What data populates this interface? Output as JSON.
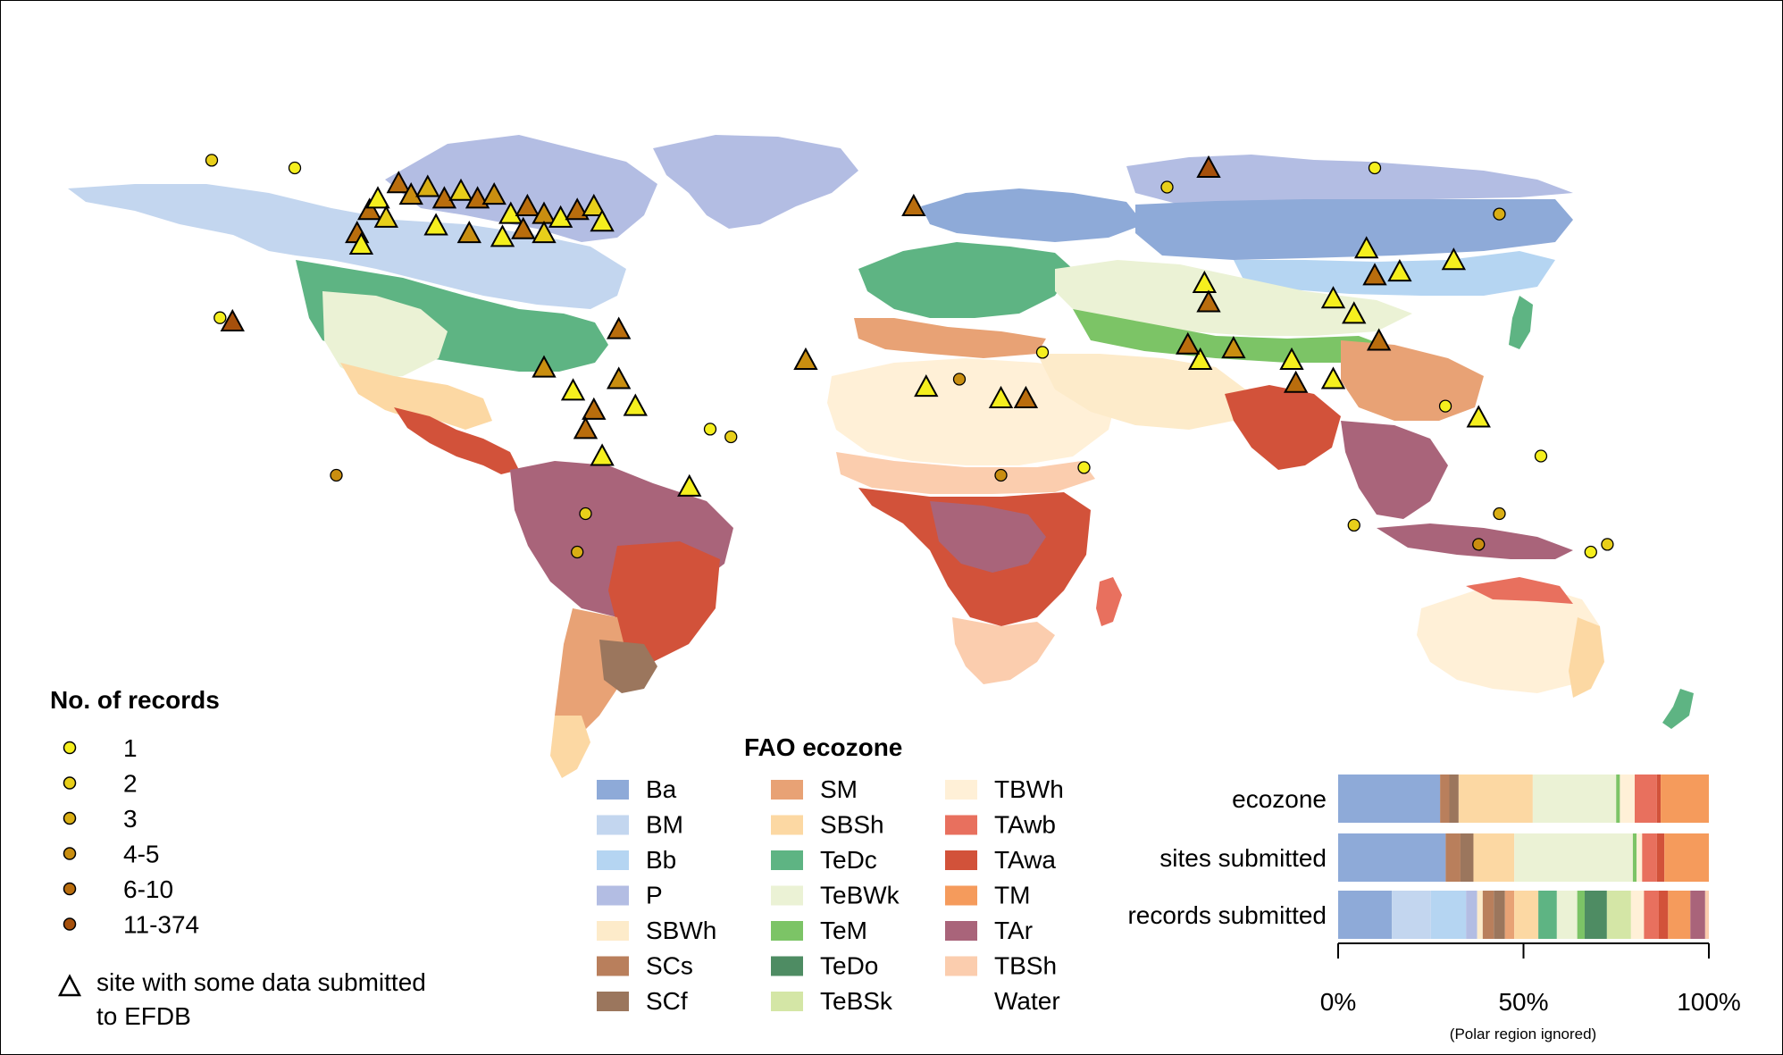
{
  "records_legend": {
    "title": "No. of records",
    "items": [
      {
        "label": "1",
        "color": "#f5ef1e"
      },
      {
        "label": "2",
        "color": "#e8cf1a"
      },
      {
        "label": "3",
        "color": "#d9ae14"
      },
      {
        "label": "4-5",
        "color": "#c98e10"
      },
      {
        "label": "6-10",
        "color": "#b96d0d"
      },
      {
        "label": "11-374",
        "color": "#a6500c"
      }
    ],
    "triangle_label_line1": "site with some data submitted",
    "triangle_label_line2": "to EFDB"
  },
  "ecozone_legend": {
    "title": "FAO ecozone",
    "items": [
      {
        "code": "Ba",
        "color": "#8eaad8"
      },
      {
        "code": "BM",
        "color": "#c3d6ef"
      },
      {
        "code": "Bb",
        "color": "#b5d5f2"
      },
      {
        "code": "P",
        "color": "#b3bde3"
      },
      {
        "code": "SBWh",
        "color": "#fdebca"
      },
      {
        "code": "SCs",
        "color": "#b97f5c"
      },
      {
        "code": "SCf",
        "color": "#9b765d"
      },
      {
        "code": "SM",
        "color": "#e8a275"
      },
      {
        "code": "SBSh",
        "color": "#fcd8a3"
      },
      {
        "code": "TeDc",
        "color": "#5eb483"
      },
      {
        "code": "TeBWk",
        "color": "#ebf2d5"
      },
      {
        "code": "TeM",
        "color": "#7cc466"
      },
      {
        "code": "TeDo",
        "color": "#4e8c63"
      },
      {
        "code": "TeBSk",
        "color": "#d4e6a6"
      },
      {
        "code": "TBWh",
        "color": "#fff0d7"
      },
      {
        "code": "TAwb",
        "color": "#e8705e"
      },
      {
        "code": "TAwa",
        "color": "#d2523a"
      },
      {
        "code": "TM",
        "color": "#f59b5c"
      },
      {
        "code": "TAr",
        "color": "#a9647a"
      },
      {
        "code": "TBSh",
        "color": "#fbcdae"
      },
      {
        "code": "Water",
        "color": "#ffffff"
      }
    ]
  },
  "bars": {
    "rows": [
      {
        "label": "ecozone"
      },
      {
        "label": "sites submitted"
      },
      {
        "label": "records submitted"
      }
    ],
    "axis_ticks": [
      "0%",
      "50%",
      "100%"
    ],
    "note": "(Polar region ignored)"
  },
  "chart_data": {
    "type": "bar",
    "orientation": "horizontal-stacked-percent",
    "categories": [
      "ecozone",
      "sites submitted",
      "records submitted"
    ],
    "xlim": [
      0,
      100
    ],
    "series": [
      {
        "name": "Ba",
        "color": "#8eaad8",
        "values": [
          27.5,
          29.0,
          14.5
        ]
      },
      {
        "name": "BM",
        "color": "#c3d6ef",
        "values": [
          0,
          0,
          10.5
        ]
      },
      {
        "name": "Bb",
        "color": "#b5d5f2",
        "values": [
          0,
          0,
          9.5
        ]
      },
      {
        "name": "P",
        "color": "#b3bde3",
        "values": [
          0,
          0,
          3.0
        ]
      },
      {
        "name": "SBWh",
        "color": "#fdebca",
        "values": [
          0,
          0,
          1.5
        ]
      },
      {
        "name": "SCs",
        "color": "#b97f5c",
        "values": [
          2.5,
          4.0,
          3.0
        ]
      },
      {
        "name": "SCf",
        "color": "#9b765d",
        "values": [
          2.5,
          3.5,
          3.0
        ]
      },
      {
        "name": "SM",
        "color": "#e8a275",
        "values": [
          0,
          0,
          2.5
        ]
      },
      {
        "name": "SBSh",
        "color": "#fcd8a3",
        "values": [
          20.0,
          11.0,
          6.5
        ]
      },
      {
        "name": "TeDc",
        "color": "#5eb483",
        "values": [
          0,
          0,
          5.0
        ]
      },
      {
        "name": "TeBWk",
        "color": "#ebf2d5",
        "values": [
          22.5,
          32.0,
          5.5
        ]
      },
      {
        "name": "TeM",
        "color": "#7cc466",
        "values": [
          1.0,
          1.0,
          2.0
        ]
      },
      {
        "name": "TeDo",
        "color": "#4e8c63",
        "values": [
          0,
          0,
          6.0
        ]
      },
      {
        "name": "TeBSk",
        "color": "#d4e6a6",
        "values": [
          0,
          0,
          6.5
        ]
      },
      {
        "name": "TBWh",
        "color": "#fff0d7",
        "values": [
          4.0,
          1.5,
          3.5
        ]
      },
      {
        "name": "TAwb",
        "color": "#e8705e",
        "values": [
          6.0,
          4.0,
          4.0
        ]
      },
      {
        "name": "TAwa",
        "color": "#d2523a",
        "values": [
          1.0,
          2.0,
          2.5
        ]
      },
      {
        "name": "TM",
        "color": "#f59b5c",
        "values": [
          13.0,
          12.0,
          6.0
        ]
      },
      {
        "name": "TAr",
        "color": "#a9647a",
        "values": [
          0,
          0,
          4.0
        ]
      },
      {
        "name": "TBSh",
        "color": "#fbcdae",
        "values": [
          0,
          0,
          1.0
        ]
      }
    ]
  },
  "map_data": {
    "description_source": "world map of FAO ecozones with EFDB record locations",
    "sites": [
      {
        "lon": -122,
        "lat": 49,
        "cls": 4,
        "tri": true
      },
      {
        "lon": -120,
        "lat": 52,
        "cls": 0,
        "tri": true
      },
      {
        "lon": -118,
        "lat": 47,
        "cls": 1,
        "tri": true
      },
      {
        "lon": -115,
        "lat": 56,
        "cls": 4,
        "tri": true
      },
      {
        "lon": -112,
        "lat": 53,
        "cls": 3,
        "tri": true
      },
      {
        "lon": -108,
        "lat": 55,
        "cls": 2,
        "tri": true
      },
      {
        "lon": -104,
        "lat": 52,
        "cls": 4,
        "tri": true
      },
      {
        "lon": -100,
        "lat": 54,
        "cls": 1,
        "tri": true
      },
      {
        "lon": -96,
        "lat": 52,
        "cls": 4,
        "tri": true
      },
      {
        "lon": -92,
        "lat": 53,
        "cls": 3,
        "tri": true
      },
      {
        "lon": -88,
        "lat": 48,
        "cls": 0,
        "tri": true
      },
      {
        "lon": -84,
        "lat": 50,
        "cls": 4,
        "tri": true
      },
      {
        "lon": -80,
        "lat": 48,
        "cls": 3,
        "tri": true
      },
      {
        "lon": -76,
        "lat": 47,
        "cls": 0,
        "tri": true
      },
      {
        "lon": -72,
        "lat": 49,
        "cls": 4,
        "tri": true
      },
      {
        "lon": -68,
        "lat": 50,
        "cls": 1,
        "tri": true
      },
      {
        "lon": -66,
        "lat": 46,
        "cls": 0,
        "tri": true
      },
      {
        "lon": -106,
        "lat": 45,
        "cls": 0,
        "tri": true
      },
      {
        "lon": -98,
        "lat": 43,
        "cls": 3,
        "tri": true
      },
      {
        "lon": -90,
        "lat": 42,
        "cls": 0,
        "tri": true
      },
      {
        "lon": -85,
        "lat": 44,
        "cls": 4,
        "tri": true
      },
      {
        "lon": -80,
        "lat": 43,
        "cls": 1,
        "tri": true
      },
      {
        "lon": -125,
        "lat": 43,
        "cls": 4,
        "tri": true
      },
      {
        "lon": -124,
        "lat": 40,
        "cls": 0,
        "tri": true
      },
      {
        "lon": -155,
        "lat": 20,
        "cls": 5,
        "tri": true
      },
      {
        "lon": -62,
        "lat": 18,
        "cls": 4,
        "tri": true
      },
      {
        "lon": -80,
        "lat": 8,
        "cls": 3,
        "tri": true
      },
      {
        "lon": -73,
        "lat": 2,
        "cls": 0,
        "tri": true
      },
      {
        "lon": -68,
        "lat": -3,
        "cls": 4,
        "tri": true
      },
      {
        "lon": -62,
        "lat": 5,
        "cls": 3,
        "tri": true
      },
      {
        "lon": -58,
        "lat": -2,
        "cls": 0,
        "tri": true
      },
      {
        "lon": -70,
        "lat": -8,
        "cls": 4,
        "tri": true
      },
      {
        "lon": -66,
        "lat": -15,
        "cls": 0,
        "tri": true
      },
      {
        "lon": -45,
        "lat": -23,
        "cls": 0,
        "tri": true
      },
      {
        "lon": -17,
        "lat": 10,
        "cls": 3,
        "tri": true
      },
      {
        "lon": 12,
        "lat": 3,
        "cls": 0,
        "tri": true
      },
      {
        "lon": 30,
        "lat": 0,
        "cls": 0,
        "tri": true
      },
      {
        "lon": 36,
        "lat": 0,
        "cls": 4,
        "tri": true
      },
      {
        "lon": 9,
        "lat": 50,
        "cls": 4,
        "tri": true
      },
      {
        "lon": 80,
        "lat": 60,
        "cls": 5,
        "tri": true
      },
      {
        "lon": 79,
        "lat": 30,
        "cls": 0,
        "tri": true
      },
      {
        "lon": 80,
        "lat": 25,
        "cls": 4,
        "tri": true
      },
      {
        "lon": 78,
        "lat": 10,
        "cls": 0,
        "tri": true
      },
      {
        "lon": 75,
        "lat": 14,
        "cls": 4,
        "tri": true
      },
      {
        "lon": 86,
        "lat": 13,
        "cls": 3,
        "tri": true
      },
      {
        "lon": 100,
        "lat": 10,
        "cls": 0,
        "tri": true
      },
      {
        "lon": 101,
        "lat": 4,
        "cls": 4,
        "tri": true
      },
      {
        "lon": 110,
        "lat": 5,
        "cls": 0,
        "tri": true
      },
      {
        "lon": 115,
        "lat": 22,
        "cls": 0,
        "tri": true
      },
      {
        "lon": 110,
        "lat": 26,
        "cls": 0,
        "tri": true
      },
      {
        "lon": 121,
        "lat": 15,
        "cls": 4,
        "tri": true
      },
      {
        "lon": 126,
        "lat": 33,
        "cls": 0,
        "tri": true
      },
      {
        "lon": 139,
        "lat": 36,
        "cls": 0,
        "tri": true
      },
      {
        "lon": 145,
        "lat": -5,
        "cls": 0,
        "tri": true
      },
      {
        "lon": 120,
        "lat": 32,
        "cls": 4,
        "tri": true
      },
      {
        "lon": 118,
        "lat": 39,
        "cls": 0,
        "tri": true
      },
      {
        "lon": -158,
        "lat": 21,
        "cls": 0,
        "tri": false
      },
      {
        "lon": -160,
        "lat": 62,
        "cls": 1,
        "tri": false
      },
      {
        "lon": -140,
        "lat": 60,
        "cls": 0,
        "tri": false
      },
      {
        "lon": -130,
        "lat": -20,
        "cls": 3,
        "tri": false
      },
      {
        "lon": -70,
        "lat": -30,
        "cls": 1,
        "tri": false
      },
      {
        "lon": -72,
        "lat": -40,
        "cls": 2,
        "tri": false
      },
      {
        "lon": -40,
        "lat": -8,
        "cls": 0,
        "tri": false
      },
      {
        "lon": -35,
        "lat": -10,
        "cls": 1,
        "tri": false
      },
      {
        "lon": 20,
        "lat": 5,
        "cls": 3,
        "tri": false
      },
      {
        "lon": 40,
        "lat": 12,
        "cls": 0,
        "tri": false
      },
      {
        "lon": 30,
        "lat": -20,
        "cls": 3,
        "tri": false
      },
      {
        "lon": 50,
        "lat": -18,
        "cls": 0,
        "tri": false
      },
      {
        "lon": 70,
        "lat": 55,
        "cls": 1,
        "tri": false
      },
      {
        "lon": 120,
        "lat": 60,
        "cls": 0,
        "tri": false
      },
      {
        "lon": 150,
        "lat": -30,
        "cls": 2,
        "tri": false
      },
      {
        "lon": 145,
        "lat": -38,
        "cls": 3,
        "tri": false
      },
      {
        "lon": 115,
        "lat": -33,
        "cls": 1,
        "tri": false
      },
      {
        "lon": 172,
        "lat": -40,
        "cls": 0,
        "tri": false
      },
      {
        "lon": 176,
        "lat": -38,
        "cls": 1,
        "tri": false
      },
      {
        "lon": 160,
        "lat": -15,
        "cls": 0,
        "tri": false
      },
      {
        "lon": 137,
        "lat": -2,
        "cls": 0,
        "tri": false
      },
      {
        "lon": 150,
        "lat": 48,
        "cls": 2,
        "tri": false
      }
    ]
  }
}
